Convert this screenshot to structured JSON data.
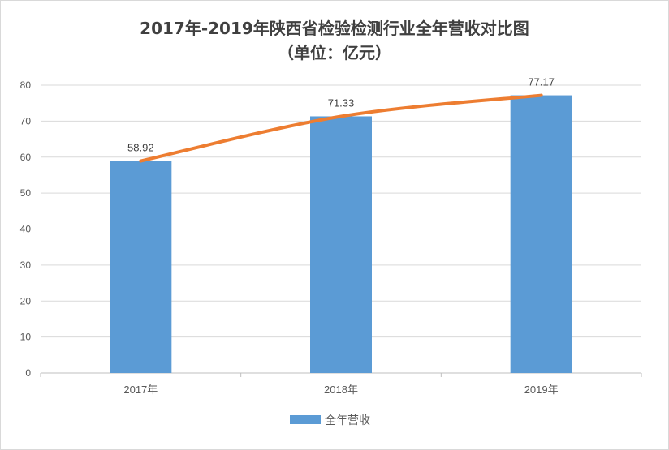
{
  "chart_data": {
    "type": "bar",
    "title_lines": [
      "2017年-2019年陕西省检验检测行业全年营收对比图",
      "（单位：亿元）"
    ],
    "categories": [
      "2017年",
      "2018年",
      "2019年"
    ],
    "series": [
      {
        "name": "全年营收",
        "values": [
          58.92,
          71.33,
          77.17
        ],
        "data_labels": [
          "58.92",
          "71.33",
          "77.17"
        ],
        "color": "#5B9BD5"
      }
    ],
    "trendline": {
      "type": "smooth-line",
      "values": [
        58.92,
        71.33,
        77.17
      ],
      "color": "#ED7D31"
    },
    "ylim": [
      0,
      80
    ],
    "yticks": [
      0,
      10,
      20,
      30,
      40,
      50,
      60,
      70,
      80
    ],
    "grid": true,
    "legend": "bottom"
  }
}
